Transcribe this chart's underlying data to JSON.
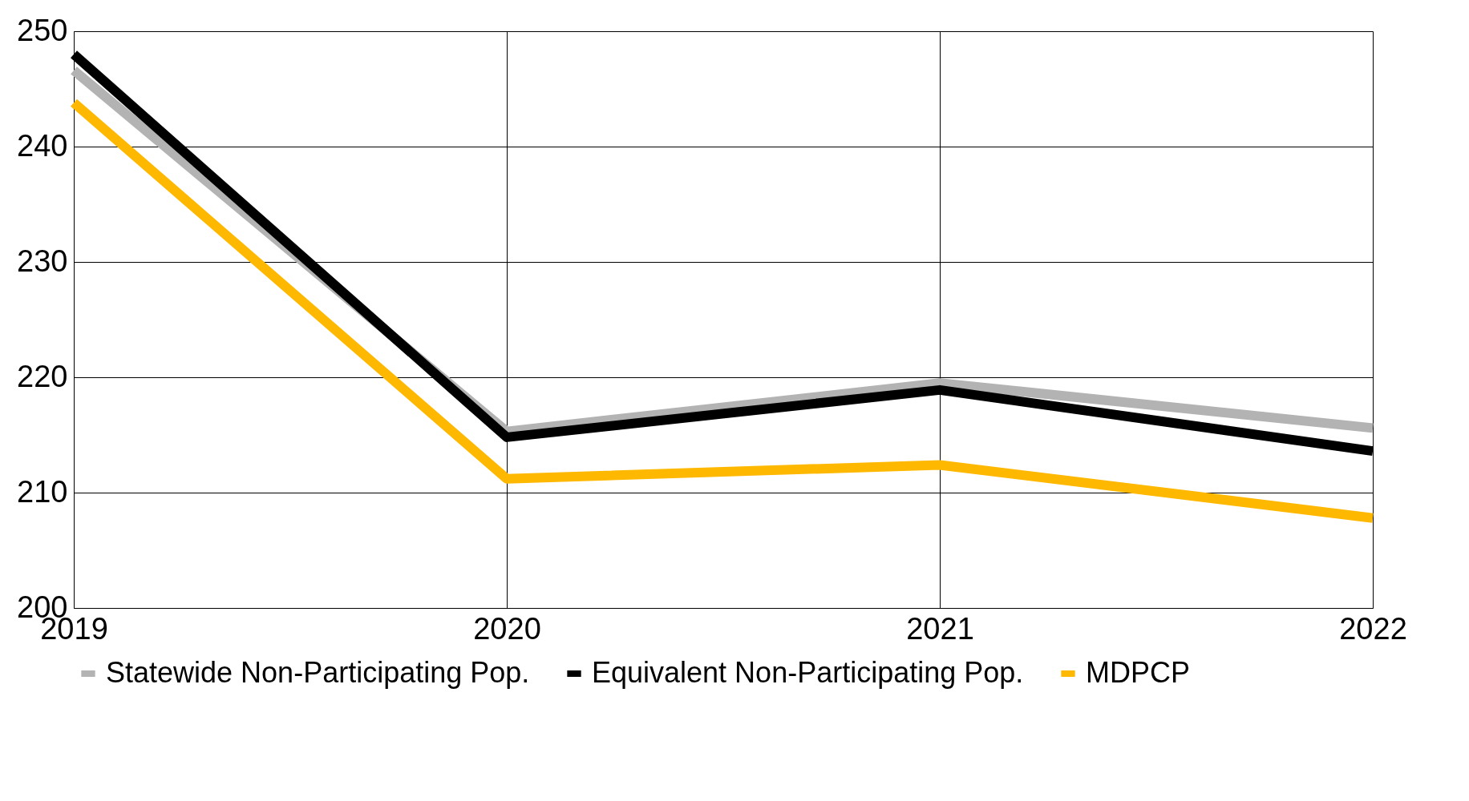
{
  "chart_data": {
    "type": "line",
    "x": [
      2019,
      2020,
      2021,
      2022
    ],
    "series": [
      {
        "name": "Statewide Non-Participating Pop.",
        "color": "#b3b3b3",
        "values": [
          246.6,
          215.3,
          219.5,
          215.6
        ]
      },
      {
        "name": "Equivalent Non-Participating Pop.",
        "color": "#000000",
        "values": [
          248.0,
          214.8,
          218.9,
          213.6
        ]
      },
      {
        "name": "MDPCP",
        "color": "#ffb800",
        "values": [
          243.8,
          211.2,
          212.4,
          207.8
        ]
      }
    ],
    "xlim": [
      2019,
      2022
    ],
    "xticks": [
      2019,
      2020,
      2021,
      2022
    ],
    "ylim": [
      200,
      250
    ],
    "yticks": [
      200,
      210,
      220,
      230,
      240,
      250
    ],
    "grid": true,
    "legend": "bottom",
    "line_style": "solid",
    "marker": "none"
  }
}
